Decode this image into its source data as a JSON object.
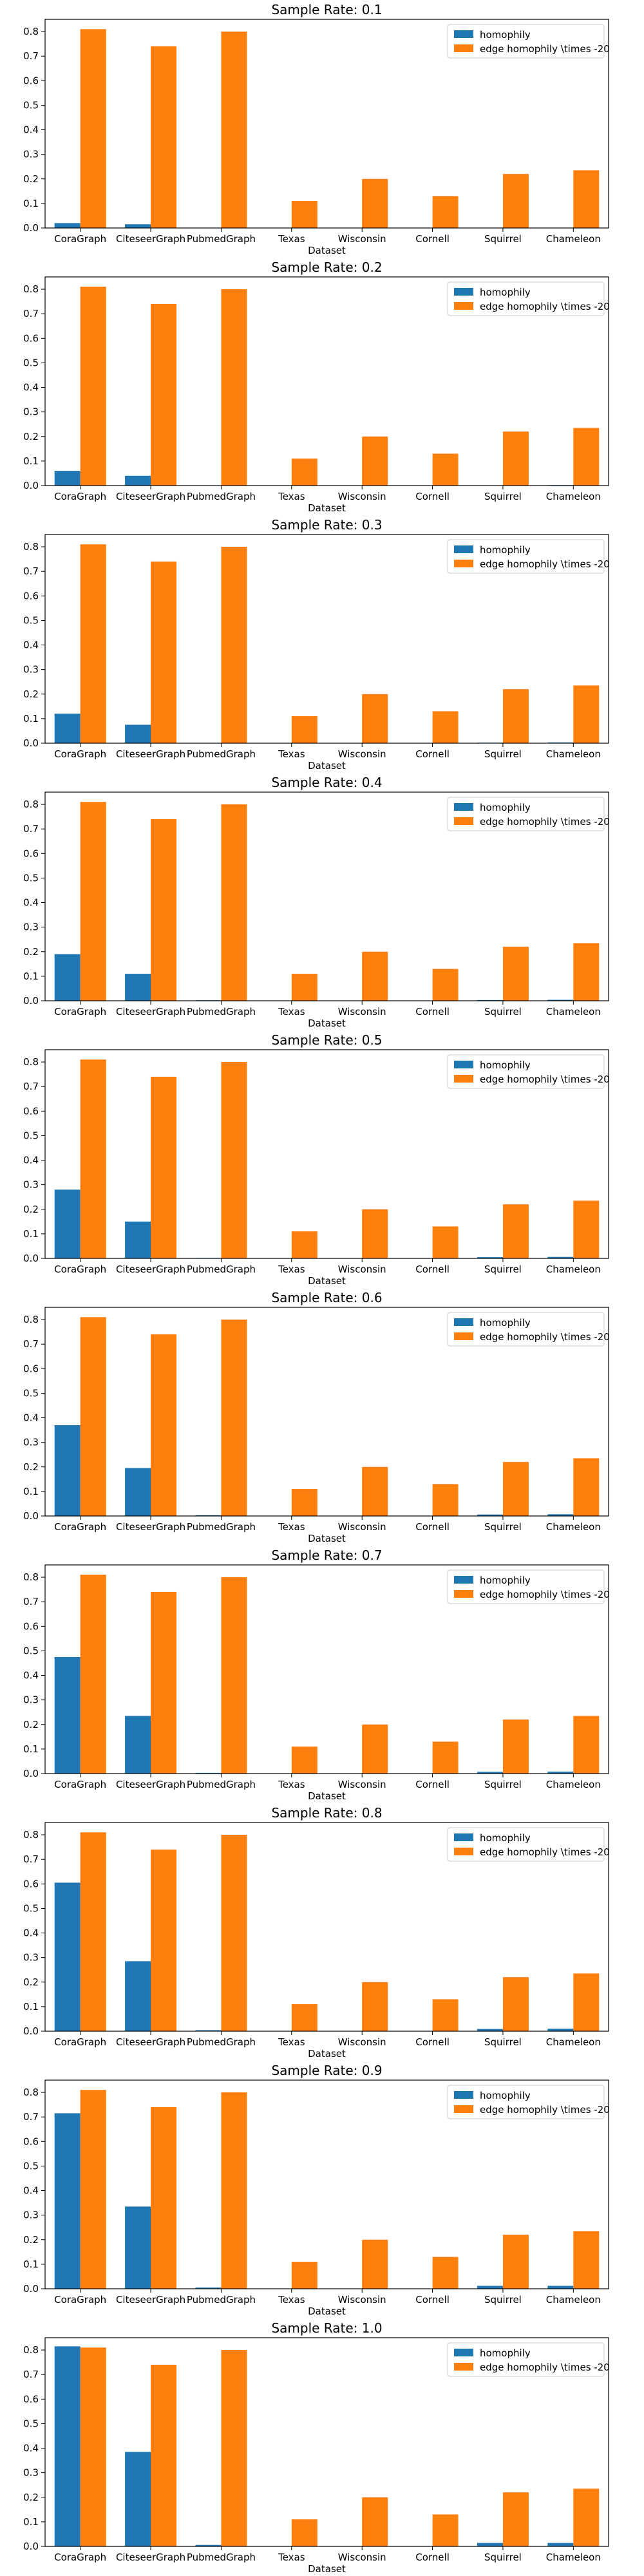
{
  "colors": {
    "homophily": "#1f77b4",
    "edge": "#ff7f0e",
    "axis": "#000000",
    "legend_border": "#cccccc"
  },
  "legend": {
    "placement": "top-right",
    "entries": [
      "homophily",
      "edge homophily \\times -20"
    ]
  },
  "chart_data": [
    {
      "type": "bar",
      "title": "Sample Rate: 0.1",
      "xlabel": "Dataset",
      "ylabel": "",
      "ylim": [
        0,
        0.85
      ],
      "yticks": [
        "0.0",
        "0.1",
        "0.2",
        "0.3",
        "0.4",
        "0.5",
        "0.6",
        "0.7",
        "0.8"
      ],
      "categories": [
        "CoraGraph",
        "CiteseerGraph",
        "PubmedGraph",
        "Texas",
        "Wisconsin",
        "Cornell",
        "Squirrel",
        "Chameleon"
      ],
      "series": [
        {
          "name": "homophily",
          "values": [
            0.02,
            0.015,
            0.0,
            0.0,
            0.0,
            0.0,
            0.001,
            0.001
          ]
        },
        {
          "name": "edge homophily \\times -20",
          "values": [
            0.81,
            0.74,
            0.8,
            0.11,
            0.2,
            0.13,
            0.22,
            0.235
          ]
        }
      ]
    },
    {
      "type": "bar",
      "title": "Sample Rate: 0.2",
      "xlabel": "Dataset",
      "ylabel": "",
      "ylim": [
        0,
        0.85
      ],
      "yticks": [
        "0.0",
        "0.1",
        "0.2",
        "0.3",
        "0.4",
        "0.5",
        "0.6",
        "0.7",
        "0.8"
      ],
      "categories": [
        "CoraGraph",
        "CiteseerGraph",
        "PubmedGraph",
        "Texas",
        "Wisconsin",
        "Cornell",
        "Squirrel",
        "Chameleon"
      ],
      "series": [
        {
          "name": "homophily",
          "values": [
            0.06,
            0.04,
            0.0,
            0.0,
            0.0,
            0.0,
            0.001,
            0.002
          ]
        },
        {
          "name": "edge homophily \\times -20",
          "values": [
            0.81,
            0.74,
            0.8,
            0.11,
            0.2,
            0.13,
            0.22,
            0.235
          ]
        }
      ]
    },
    {
      "type": "bar",
      "title": "Sample Rate: 0.3",
      "xlabel": "Dataset",
      "ylabel": "",
      "ylim": [
        0,
        0.85
      ],
      "yticks": [
        "0.0",
        "0.1",
        "0.2",
        "0.3",
        "0.4",
        "0.5",
        "0.6",
        "0.7",
        "0.8"
      ],
      "categories": [
        "CoraGraph",
        "CiteseerGraph",
        "PubmedGraph",
        "Texas",
        "Wisconsin",
        "Cornell",
        "Squirrel",
        "Chameleon"
      ],
      "series": [
        {
          "name": "homophily",
          "values": [
            0.12,
            0.075,
            0.0,
            0.0,
            0.0,
            0.0,
            0.002,
            0.003
          ]
        },
        {
          "name": "edge homophily \\times -20",
          "values": [
            0.81,
            0.74,
            0.8,
            0.11,
            0.2,
            0.13,
            0.22,
            0.235
          ]
        }
      ]
    },
    {
      "type": "bar",
      "title": "Sample Rate: 0.4",
      "xlabel": "Dataset",
      "ylabel": "",
      "ylim": [
        0,
        0.85
      ],
      "yticks": [
        "0.0",
        "0.1",
        "0.2",
        "0.3",
        "0.4",
        "0.5",
        "0.6",
        "0.7",
        "0.8"
      ],
      "categories": [
        "CoraGraph",
        "CiteseerGraph",
        "PubmedGraph",
        "Texas",
        "Wisconsin",
        "Cornell",
        "Squirrel",
        "Chameleon"
      ],
      "series": [
        {
          "name": "homophily",
          "values": [
            0.19,
            0.11,
            0.002,
            0.0,
            0.0,
            0.0,
            0.003,
            0.004
          ]
        },
        {
          "name": "edge homophily \\times -20",
          "values": [
            0.81,
            0.74,
            0.8,
            0.11,
            0.2,
            0.13,
            0.22,
            0.235
          ]
        }
      ]
    },
    {
      "type": "bar",
      "title": "Sample Rate: 0.5",
      "xlabel": "Dataset",
      "ylabel": "",
      "ylim": [
        0,
        0.85
      ],
      "yticks": [
        "0.0",
        "0.1",
        "0.2",
        "0.3",
        "0.4",
        "0.5",
        "0.6",
        "0.7",
        "0.8"
      ],
      "categories": [
        "CoraGraph",
        "CiteseerGraph",
        "PubmedGraph",
        "Texas",
        "Wisconsin",
        "Cornell",
        "Squirrel",
        "Chameleon"
      ],
      "series": [
        {
          "name": "homophily",
          "values": [
            0.28,
            0.15,
            0.002,
            0.0,
            0.0,
            0.0,
            0.005,
            0.006
          ]
        },
        {
          "name": "edge homophily \\times -20",
          "values": [
            0.81,
            0.74,
            0.8,
            0.11,
            0.2,
            0.13,
            0.22,
            0.235
          ]
        }
      ]
    },
    {
      "type": "bar",
      "title": "Sample Rate: 0.6",
      "xlabel": "Dataset",
      "ylabel": "",
      "ylim": [
        0,
        0.85
      ],
      "yticks": [
        "0.0",
        "0.1",
        "0.2",
        "0.3",
        "0.4",
        "0.5",
        "0.6",
        "0.7",
        "0.8"
      ],
      "categories": [
        "CoraGraph",
        "CiteseerGraph",
        "PubmedGraph",
        "Texas",
        "Wisconsin",
        "Cornell",
        "Squirrel",
        "Chameleon"
      ],
      "series": [
        {
          "name": "homophily",
          "values": [
            0.37,
            0.195,
            0.003,
            0.0,
            0.0,
            0.0,
            0.006,
            0.007
          ]
        },
        {
          "name": "edge homophily \\times -20",
          "values": [
            0.81,
            0.74,
            0.8,
            0.11,
            0.2,
            0.13,
            0.22,
            0.235
          ]
        }
      ]
    },
    {
      "type": "bar",
      "title": "Sample Rate: 0.7",
      "xlabel": "Dataset",
      "ylabel": "",
      "ylim": [
        0,
        0.85
      ],
      "yticks": [
        "0.0",
        "0.1",
        "0.2",
        "0.3",
        "0.4",
        "0.5",
        "0.6",
        "0.7",
        "0.8"
      ],
      "categories": [
        "CoraGraph",
        "CiteseerGraph",
        "PubmedGraph",
        "Texas",
        "Wisconsin",
        "Cornell",
        "Squirrel",
        "Chameleon"
      ],
      "series": [
        {
          "name": "homophily",
          "values": [
            0.475,
            0.235,
            0.003,
            0.0,
            0.0,
            0.0,
            0.007,
            0.008
          ]
        },
        {
          "name": "edge homophily \\times -20",
          "values": [
            0.81,
            0.74,
            0.8,
            0.11,
            0.2,
            0.13,
            0.22,
            0.235
          ]
        }
      ]
    },
    {
      "type": "bar",
      "title": "Sample Rate: 0.8",
      "xlabel": "Dataset",
      "ylabel": "",
      "ylim": [
        0,
        0.85
      ],
      "yticks": [
        "0.0",
        "0.1",
        "0.2",
        "0.3",
        "0.4",
        "0.5",
        "0.6",
        "0.7",
        "0.8"
      ],
      "categories": [
        "CoraGraph",
        "CiteseerGraph",
        "PubmedGraph",
        "Texas",
        "Wisconsin",
        "Cornell",
        "Squirrel",
        "Chameleon"
      ],
      "series": [
        {
          "name": "homophily",
          "values": [
            0.605,
            0.285,
            0.004,
            0.0,
            0.0,
            0.0,
            0.009,
            0.01
          ]
        },
        {
          "name": "edge homophily \\times -20",
          "values": [
            0.81,
            0.74,
            0.8,
            0.11,
            0.2,
            0.13,
            0.22,
            0.235
          ]
        }
      ]
    },
    {
      "type": "bar",
      "title": "Sample Rate: 0.9",
      "xlabel": "Dataset",
      "ylabel": "",
      "ylim": [
        0,
        0.85
      ],
      "yticks": [
        "0.0",
        "0.1",
        "0.2",
        "0.3",
        "0.4",
        "0.5",
        "0.6",
        "0.7",
        "0.8"
      ],
      "categories": [
        "CoraGraph",
        "CiteseerGraph",
        "PubmedGraph",
        "Texas",
        "Wisconsin",
        "Cornell",
        "Squirrel",
        "Chameleon"
      ],
      "series": [
        {
          "name": "homophily",
          "values": [
            0.715,
            0.335,
            0.005,
            0.0,
            0.0,
            0.0,
            0.012,
            0.012
          ]
        },
        {
          "name": "edge homophily \\times -20",
          "values": [
            0.81,
            0.74,
            0.8,
            0.11,
            0.2,
            0.13,
            0.22,
            0.235
          ]
        }
      ]
    },
    {
      "type": "bar",
      "title": "Sample Rate: 1.0",
      "xlabel": "Dataset",
      "ylabel": "",
      "ylim": [
        0,
        0.85
      ],
      "yticks": [
        "0.0",
        "0.1",
        "0.2",
        "0.3",
        "0.4",
        "0.5",
        "0.6",
        "0.7",
        "0.8"
      ],
      "categories": [
        "CoraGraph",
        "CiteseerGraph",
        "PubmedGraph",
        "Texas",
        "Wisconsin",
        "Cornell",
        "Squirrel",
        "Chameleon"
      ],
      "series": [
        {
          "name": "homophily",
          "values": [
            0.815,
            0.385,
            0.006,
            0.0,
            0.0,
            0.0,
            0.014,
            0.014
          ]
        },
        {
          "name": "edge homophily \\times -20",
          "values": [
            0.81,
            0.74,
            0.8,
            0.11,
            0.2,
            0.13,
            0.22,
            0.235
          ]
        }
      ]
    }
  ]
}
